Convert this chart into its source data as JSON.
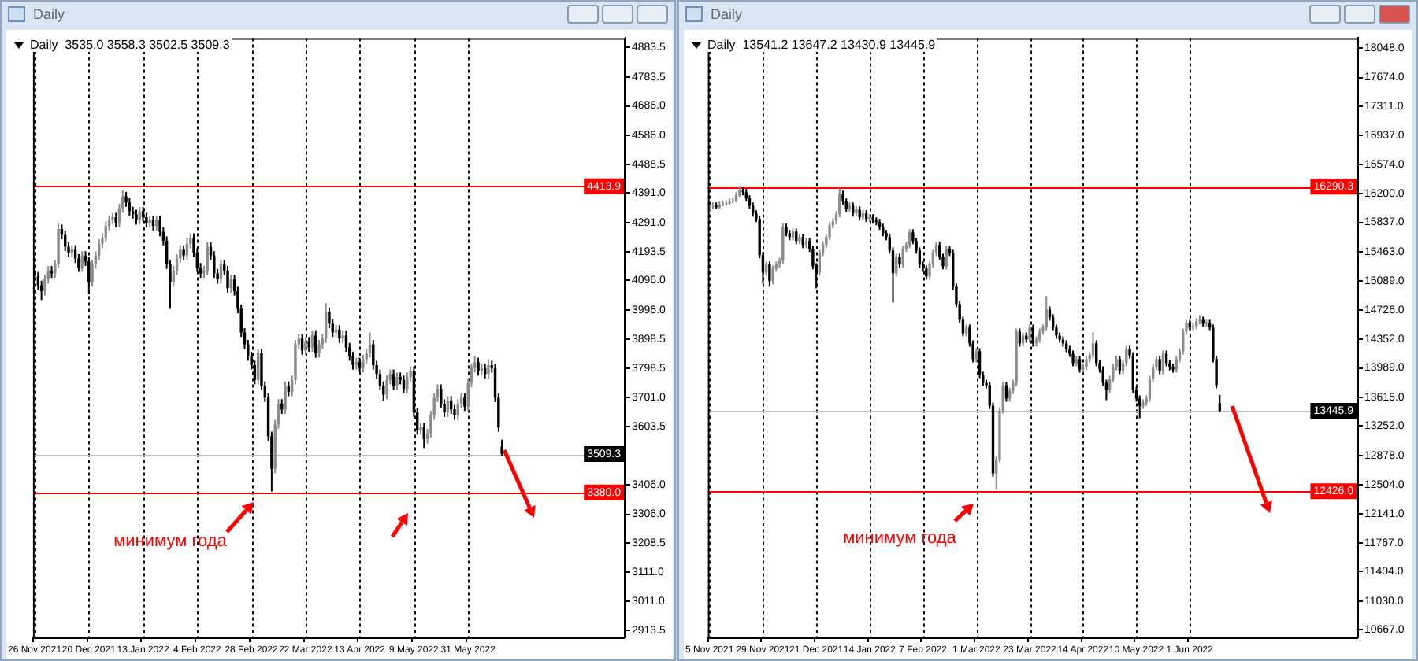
{
  "chart_data": [
    {
      "type": "candlestick",
      "title": "Daily",
      "subtitle": "Daily  3535.0 3558.3 3502.5 3509.3",
      "categories": [
        "26 Nov 2021",
        null,
        null,
        null,
        null,
        null,
        null,
        null,
        null,
        null,
        null,
        null,
        null,
        null,
        null,
        null,
        "20 Dec 2021",
        null,
        null,
        null,
        null,
        null,
        null,
        null,
        null,
        null,
        null,
        null,
        null,
        null,
        null,
        null,
        "13 Jan 2022",
        null,
        null,
        null,
        null,
        null,
        null,
        null,
        null,
        null,
        null,
        null,
        null,
        null,
        null,
        null,
        "4 Feb 2022",
        null,
        null,
        null,
        null,
        null,
        null,
        null,
        null,
        null,
        null,
        null,
        null,
        null,
        null,
        null,
        "28 Feb 2022",
        null,
        null,
        null,
        null,
        null,
        null,
        null,
        null,
        null,
        null,
        null,
        null,
        null,
        null,
        null,
        "22 Mar 2022",
        null,
        null,
        null,
        null,
        null,
        null,
        null,
        null,
        null,
        null,
        null,
        null,
        null,
        null,
        null,
        "13 Apr 2022",
        null,
        null,
        null,
        null,
        null,
        null,
        null,
        null,
        null,
        null,
        null,
        null,
        null,
        null,
        null,
        "9 May 2022",
        null,
        null,
        null,
        null,
        null,
        null,
        null,
        null,
        null,
        null,
        null,
        null,
        null,
        null,
        null,
        "31 May 2022",
        null,
        null,
        null,
        null,
        null,
        null,
        null,
        null,
        null,
        null,
        null,
        null,
        null,
        null,
        null,
        null,
        null,
        null,
        null,
        null,
        null,
        null,
        null,
        null,
        null,
        null,
        null,
        null,
        null,
        null,
        null,
        null,
        null,
        null,
        null,
        null,
        null,
        null,
        null,
        null,
        null,
        null,
        null,
        null,
        null,
        null
      ],
      "ohlc": [
        [
          4130,
          4145,
          4095,
          4110
        ],
        [
          4110,
          4125,
          4065,
          4080
        ],
        [
          4080,
          4095,
          4030,
          4060
        ],
        [
          4060,
          4115,
          4045,
          4100
        ],
        [
          4100,
          4145,
          4085,
          4130
        ],
        [
          4130,
          4145,
          4105,
          4120
        ],
        [
          4120,
          4165,
          4105,
          4150
        ],
        [
          4150,
          4290,
          4140,
          4270
        ],
        [
          4270,
          4285,
          4235,
          4250
        ],
        [
          4250,
          4265,
          4195,
          4210
        ],
        [
          4210,
          4225,
          4175,
          4190
        ],
        [
          4190,
          4215,
          4175,
          4200
        ],
        [
          4200,
          4215,
          4155,
          4170
        ],
        [
          4170,
          4185,
          4125,
          4140
        ],
        [
          4140,
          4195,
          4125,
          4180
        ],
        [
          4180,
          4195,
          4145,
          4160
        ],
        [
          4160,
          4175,
          4050,
          4090
        ],
        [
          4090,
          4165,
          4075,
          4150
        ],
        [
          4150,
          4195,
          4135,
          4180
        ],
        [
          4180,
          4235,
          4165,
          4220
        ],
        [
          4220,
          4255,
          4205,
          4240
        ],
        [
          4240,
          4295,
          4225,
          4280
        ],
        [
          4280,
          4315,
          4265,
          4300
        ],
        [
          4300,
          4325,
          4285,
          4310
        ],
        [
          4310,
          4325,
          4275,
          4290
        ],
        [
          4290,
          4355,
          4275,
          4340
        ],
        [
          4340,
          4400,
          4325,
          4380
        ],
        [
          4380,
          4395,
          4345,
          4360
        ],
        [
          4360,
          4375,
          4315,
          4330
        ],
        [
          4330,
          4345,
          4305,
          4320
        ],
        [
          4320,
          4335,
          4285,
          4300
        ],
        [
          4300,
          4345,
          4285,
          4330
        ],
        [
          4330,
          4345,
          4295,
          4310
        ],
        [
          4310,
          4325,
          4275,
          4290
        ],
        [
          4290,
          4315,
          4275,
          4300
        ],
        [
          4300,
          4315,
          4265,
          4280
        ],
        [
          4280,
          4315,
          4265,
          4300
        ],
        [
          4300,
          4315,
          4245,
          4260
        ],
        [
          4260,
          4275,
          4215,
          4230
        ],
        [
          4230,
          4245,
          4135,
          4150
        ],
        [
          4150,
          4165,
          4000,
          4090
        ],
        [
          4090,
          4145,
          4075,
          4130
        ],
        [
          4130,
          4185,
          4115,
          4170
        ],
        [
          4170,
          4215,
          4155,
          4200
        ],
        [
          4200,
          4215,
          4165,
          4180
        ],
        [
          4180,
          4240,
          4165,
          4220
        ],
        [
          4220,
          4255,
          4205,
          4240
        ],
        [
          4240,
          4255,
          4175,
          4190
        ],
        [
          4190,
          4205,
          4125,
          4140
        ],
        [
          4140,
          4155,
          4105,
          4120
        ],
        [
          4120,
          4145,
          4105,
          4130
        ],
        [
          4130,
          4225,
          4115,
          4210
        ],
        [
          4210,
          4225,
          4165,
          4180
        ],
        [
          4180,
          4195,
          4105,
          4120
        ],
        [
          4120,
          4135,
          4085,
          4100
        ],
        [
          4100,
          4165,
          4085,
          4150
        ],
        [
          4150,
          4165,
          4115,
          4130
        ],
        [
          4130,
          4145,
          4055,
          4070
        ],
        [
          4070,
          4115,
          4055,
          4100
        ],
        [
          4100,
          4115,
          4045,
          4060
        ],
        [
          4060,
          4075,
          3985,
          4000
        ],
        [
          4000,
          4015,
          3905,
          3920
        ],
        [
          3920,
          3935,
          3865,
          3880
        ],
        [
          3880,
          3895,
          3825,
          3840
        ],
        [
          3840,
          3855,
          3795,
          3810
        ],
        [
          3810,
          3825,
          3745,
          3760
        ],
        [
          3760,
          3865,
          3745,
          3850
        ],
        [
          3850,
          3865,
          3725,
          3740
        ],
        [
          3740,
          3755,
          3685,
          3700
        ],
        [
          3700,
          3715,
          3555,
          3570
        ],
        [
          3570,
          3585,
          3383,
          3460
        ],
        [
          3460,
          3625,
          3445,
          3610
        ],
        [
          3610,
          3695,
          3595,
          3680
        ],
        [
          3680,
          3695,
          3645,
          3660
        ],
        [
          3660,
          3755,
          3645,
          3740
        ],
        [
          3740,
          3755,
          3705,
          3720
        ],
        [
          3720,
          3775,
          3705,
          3760
        ],
        [
          3760,
          3895,
          3745,
          3880
        ],
        [
          3880,
          3915,
          3865,
          3900
        ],
        [
          3900,
          3915,
          3845,
          3860
        ],
        [
          3860,
          3905,
          3845,
          3890
        ],
        [
          3890,
          3905,
          3855,
          3870
        ],
        [
          3870,
          3925,
          3855,
          3910
        ],
        [
          3910,
          3925,
          3835,
          3850
        ],
        [
          3850,
          3895,
          3835,
          3880
        ],
        [
          3880,
          3915,
          3865,
          3900
        ],
        [
          3900,
          4020,
          3885,
          3990
        ],
        [
          3990,
          4005,
          3935,
          3950
        ],
        [
          3950,
          3965,
          3905,
          3920
        ],
        [
          3920,
          3945,
          3905,
          3930
        ],
        [
          3930,
          3945,
          3885,
          3900
        ],
        [
          3900,
          3925,
          3885,
          3910
        ],
        [
          3910,
          3925,
          3855,
          3870
        ],
        [
          3870,
          3885,
          3825,
          3840
        ],
        [
          3840,
          3855,
          3795,
          3810
        ],
        [
          3810,
          3835,
          3795,
          3820
        ],
        [
          3820,
          3835,
          3785,
          3800
        ],
        [
          3800,
          3845,
          3785,
          3830
        ],
        [
          3830,
          3865,
          3815,
          3850
        ],
        [
          3850,
          3920,
          3835,
          3880
        ],
        [
          3880,
          3895,
          3795,
          3810
        ],
        [
          3810,
          3825,
          3765,
          3780
        ],
        [
          3780,
          3795,
          3725,
          3740
        ],
        [
          3740,
          3755,
          3690,
          3710
        ],
        [
          3710,
          3775,
          3695,
          3760
        ],
        [
          3760,
          3795,
          3745,
          3780
        ],
        [
          3780,
          3795,
          3725,
          3740
        ],
        [
          3740,
          3785,
          3725,
          3770
        ],
        [
          3770,
          3785,
          3745,
          3760
        ],
        [
          3760,
          3775,
          3715,
          3730
        ],
        [
          3730,
          3785,
          3715,
          3770
        ],
        [
          3770,
          3805,
          3755,
          3790
        ],
        [
          3790,
          3805,
          3635,
          3650
        ],
        [
          3650,
          3665,
          3575,
          3590
        ],
        [
          3590,
          3615,
          3575,
          3600
        ],
        [
          3600,
          3615,
          3530,
          3560
        ],
        [
          3560,
          3595,
          3545,
          3580
        ],
        [
          3580,
          3655,
          3565,
          3640
        ],
        [
          3640,
          3715,
          3625,
          3700
        ],
        [
          3700,
          3745,
          3685,
          3730
        ],
        [
          3730,
          3745,
          3665,
          3680
        ],
        [
          3680,
          3695,
          3635,
          3650
        ],
        [
          3650,
          3705,
          3635,
          3690
        ],
        [
          3690,
          3705,
          3645,
          3660
        ],
        [
          3660,
          3675,
          3625,
          3640
        ],
        [
          3640,
          3695,
          3625,
          3680
        ],
        [
          3680,
          3715,
          3665,
          3700
        ],
        [
          3700,
          3715,
          3655,
          3670
        ],
        [
          3670,
          3765,
          3655,
          3750
        ],
        [
          3750,
          3815,
          3735,
          3800
        ],
        [
          3800,
          3840,
          3785,
          3820
        ],
        [
          3820,
          3835,
          3775,
          3790
        ],
        [
          3790,
          3815,
          3775,
          3800
        ],
        [
          3800,
          3815,
          3765,
          3780
        ],
        [
          3780,
          3830,
          3765,
          3810
        ],
        [
          3810,
          3825,
          3785,
          3800
        ],
        [
          3800,
          3815,
          3685,
          3700
        ],
        [
          3700,
          3715,
          3585,
          3600
        ],
        [
          3535.0,
          3558.3,
          3502.5,
          3509.3
        ],
        null,
        null,
        null,
        null,
        null,
        null,
        null,
        null,
        null,
        null,
        null,
        null,
        null,
        null,
        null,
        null,
        null,
        null,
        null,
        null,
        null,
        null,
        null,
        null,
        null,
        null,
        null,
        null,
        null,
        null,
        null,
        null,
        null,
        null,
        null,
        null
      ],
      "ylim": [
        2890,
        4915
      ],
      "yticks": [
        4883.5,
        4783.5,
        {
          "value": 4686.0,
          "label": "4686.0"
        },
        {
          "value": 4586.0,
          "label": "4586.0"
        },
        4488.5,
        {
          "value": 4391.0,
          "label": "4391.0"
        },
        {
          "value": 4291.0,
          "label": "4291.0"
        },
        4193.5,
        {
          "value": 4096.0,
          "label": "4096.0"
        },
        {
          "value": 3996.0,
          "label": "3996.0"
        },
        3898.5,
        3798.5,
        {
          "value": 3701.0,
          "label": "3701.0"
        },
        3603.5,
        {
          "value": 3406.0,
          "label": "3406.0"
        },
        {
          "value": 3306.0,
          "label": "3306.0"
        },
        3208.5,
        {
          "value": 3111.0,
          "label": "3111.0"
        },
        {
          "value": 3011.0,
          "label": "3011.0"
        },
        2913.5
      ],
      "grid": "x",
      "ref_lines": [
        {
          "axis": "y",
          "value": 4413.9,
          "label": "4413.9",
          "color": "#ff0000"
        },
        {
          "axis": "y",
          "value": 3380.0,
          "label": "3380.0",
          "color": "#ff0000"
        },
        {
          "axis": "y",
          "value": 3509.3,
          "label": "3509.3",
          "color": "#c0c0c0"
        }
      ],
      "annotations": [
        "минимум года"
      ]
    },
    {
      "type": "candlestick",
      "title": "Daily",
      "subtitle": "Daily  13541.2 13647.2 13430.9 13445.9",
      "categories": [
        "5 Nov 2021",
        null,
        null,
        null,
        null,
        null,
        null,
        null,
        null,
        null,
        null,
        null,
        null,
        null,
        null,
        null,
        "29 Nov 2021",
        null,
        null,
        null,
        null,
        null,
        null,
        null,
        null,
        null,
        null,
        null,
        null,
        null,
        null,
        null,
        "21 Dec 2021",
        null,
        null,
        null,
        null,
        null,
        null,
        null,
        null,
        null,
        null,
        null,
        null,
        null,
        null,
        null,
        "14 Jan 2022",
        null,
        null,
        null,
        null,
        null,
        null,
        null,
        null,
        null,
        null,
        null,
        null,
        null,
        null,
        null,
        "7 Feb 2022",
        null,
        null,
        null,
        null,
        null,
        null,
        null,
        null,
        null,
        null,
        null,
        null,
        null,
        null,
        null,
        "1 Mar 2022",
        null,
        null,
        null,
        null,
        null,
        null,
        null,
        null,
        null,
        null,
        null,
        null,
        null,
        null,
        null,
        "23 Mar 2022",
        null,
        null,
        null,
        null,
        null,
        null,
        null,
        null,
        null,
        null,
        null,
        null,
        null,
        null,
        null,
        "14 Apr 2022",
        null,
        null,
        null,
        null,
        null,
        null,
        null,
        null,
        null,
        null,
        null,
        null,
        null,
        null,
        null,
        "10 May 2022",
        null,
        null,
        null,
        null,
        null,
        null,
        null,
        null,
        null,
        null,
        null,
        null,
        null,
        null,
        null,
        "1 Jun 2022",
        null,
        null,
        null,
        null,
        null,
        null,
        null,
        null,
        null,
        null,
        null,
        null,
        null,
        null,
        null,
        null,
        null,
        null,
        null,
        null,
        null,
        null,
        null,
        null,
        null,
        null,
        null,
        null,
        null,
        null,
        null,
        null,
        null,
        null,
        null,
        null,
        null,
        null,
        null,
        null,
        null,
        null,
        null,
        null,
        null,
        null,
        null,
        null,
        null,
        null
      ],
      "ohlc": [
        [
          16000,
          16060,
          15980,
          16040
        ],
        [
          16040,
          16090,
          16010,
          16050
        ],
        [
          16050,
          16090,
          16010,
          16030
        ],
        [
          16030,
          16100,
          16010,
          16060
        ],
        [
          16060,
          16110,
          16040,
          16070
        ],
        [
          16070,
          16120,
          16050,
          16080
        ],
        [
          16080,
          16140,
          16060,
          16100
        ],
        [
          16100,
          16150,
          16080,
          16110
        ],
        [
          16110,
          16220,
          16090,
          16180
        ],
        [
          16180,
          16290,
          16160,
          16240
        ],
        [
          16240,
          16280,
          16180,
          16220
        ],
        [
          16220,
          16260,
          16100,
          16140
        ],
        [
          16140,
          16180,
          16010,
          16050
        ],
        [
          16050,
          16090,
          15910,
          15950
        ],
        [
          15950,
          15990,
          15840,
          15880
        ],
        [
          15880,
          15920,
          15380,
          15420
        ],
        [
          15420,
          15460,
          15060,
          15200
        ],
        [
          15200,
          15340,
          15160,
          15300
        ],
        [
          15300,
          15340,
          15020,
          15090
        ],
        [
          15090,
          15290,
          15050,
          15250
        ],
        [
          15250,
          15340,
          15210,
          15300
        ],
        [
          15300,
          15390,
          15260,
          15350
        ],
        [
          15350,
          15820,
          15310,
          15780
        ],
        [
          15780,
          15820,
          15660,
          15700
        ],
        [
          15700,
          15740,
          15610,
          15650
        ],
        [
          15650,
          15760,
          15610,
          15720
        ],
        [
          15720,
          15760,
          15560,
          15600
        ],
        [
          15600,
          15690,
          15560,
          15650
        ],
        [
          15650,
          15690,
          15510,
          15550
        ],
        [
          15550,
          15640,
          15510,
          15600
        ],
        [
          15600,
          15640,
          15460,
          15500
        ],
        [
          15500,
          15540,
          15240,
          15280
        ],
        [
          15280,
          15320,
          15000,
          15200
        ],
        [
          15200,
          15490,
          15160,
          15450
        ],
        [
          15450,
          15590,
          15410,
          15550
        ],
        [
          15550,
          15690,
          15510,
          15650
        ],
        [
          15650,
          15840,
          15610,
          15800
        ],
        [
          15800,
          15890,
          15760,
          15850
        ],
        [
          15850,
          15980,
          15810,
          15940
        ],
        [
          15940,
          16270,
          15900,
          16200
        ],
        [
          16200,
          16240,
          16060,
          16100
        ],
        [
          16100,
          16140,
          15970,
          16010
        ],
        [
          16010,
          16090,
          15970,
          16050
        ],
        [
          16050,
          16090,
          15910,
          15950
        ],
        [
          15950,
          16040,
          15910,
          16000
        ],
        [
          16000,
          16040,
          15860,
          15900
        ],
        [
          15900,
          15990,
          15860,
          15950
        ],
        [
          15950,
          15990,
          15840,
          15880
        ],
        [
          15880,
          15940,
          15840,
          15900
        ],
        [
          15900,
          15940,
          15820,
          15860
        ],
        [
          15860,
          15900,
          15800,
          15840
        ],
        [
          15840,
          15880,
          15740,
          15780
        ],
        [
          15780,
          15820,
          15660,
          15700
        ],
        [
          15700,
          15740,
          15610,
          15650
        ],
        [
          15650,
          15690,
          15440,
          15480
        ],
        [
          15480,
          15520,
          14820,
          15190
        ],
        [
          15190,
          15440,
          15150,
          15400
        ],
        [
          15400,
          15440,
          15260,
          15300
        ],
        [
          15300,
          15540,
          15260,
          15500
        ],
        [
          15500,
          15590,
          15460,
          15550
        ],
        [
          15550,
          15750,
          15510,
          15710
        ],
        [
          15710,
          15750,
          15560,
          15600
        ],
        [
          15600,
          15640,
          15440,
          15480
        ],
        [
          15480,
          15520,
          15260,
          15300
        ],
        [
          15300,
          15340,
          15210,
          15250
        ],
        [
          15250,
          15290,
          15110,
          15150
        ],
        [
          15150,
          15340,
          15110,
          15300
        ],
        [
          15300,
          15490,
          15260,
          15450
        ],
        [
          15450,
          15590,
          15410,
          15550
        ],
        [
          15550,
          15590,
          15360,
          15400
        ],
        [
          15400,
          15440,
          15240,
          15280
        ],
        [
          15280,
          15540,
          15240,
          15500
        ],
        [
          15500,
          15540,
          15410,
          15450
        ],
        [
          15450,
          15490,
          14980,
          15020
        ],
        [
          15020,
          15060,
          14760,
          14800
        ],
        [
          14800,
          14840,
          14560,
          14600
        ],
        [
          14600,
          14640,
          14390,
          14430
        ],
        [
          14430,
          14540,
          14390,
          14500
        ],
        [
          14500,
          14540,
          14260,
          14300
        ],
        [
          14300,
          14340,
          14060,
          14100
        ],
        [
          14100,
          14240,
          14060,
          14200
        ],
        [
          14200,
          14240,
          13860,
          13900
        ],
        [
          13900,
          13940,
          13760,
          13800
        ],
        [
          13800,
          13840,
          13730,
          13770
        ],
        [
          13770,
          13810,
          13470,
          13510
        ],
        [
          13510,
          13550,
          12610,
          12650
        ],
        [
          12650,
          12870,
          12445,
          12830
        ],
        [
          12830,
          13490,
          12790,
          13450
        ],
        [
          13450,
          13810,
          13410,
          13770
        ],
        [
          13770,
          13810,
          13560,
          13600
        ],
        [
          13600,
          13740,
          13560,
          13700
        ],
        [
          13700,
          13840,
          13660,
          13800
        ],
        [
          13800,
          14490,
          13760,
          14450
        ],
        [
          14450,
          14490,
          14260,
          14300
        ],
        [
          14300,
          14440,
          14260,
          14400
        ],
        [
          14400,
          14440,
          14310,
          14350
        ],
        [
          14350,
          14540,
          14310,
          14500
        ],
        [
          14500,
          14540,
          14260,
          14300
        ],
        [
          14300,
          14390,
          14260,
          14350
        ],
        [
          14350,
          14490,
          14310,
          14450
        ],
        [
          14450,
          14540,
          14410,
          14500
        ],
        [
          14500,
          14900,
          14460,
          14730
        ],
        [
          14730,
          14770,
          14590,
          14630
        ],
        [
          14630,
          14670,
          14460,
          14500
        ],
        [
          14500,
          14540,
          14360,
          14400
        ],
        [
          14400,
          14440,
          14310,
          14350
        ],
        [
          14350,
          14390,
          14260,
          14300
        ],
        [
          14300,
          14340,
          14190,
          14230
        ],
        [
          14230,
          14270,
          14130,
          14170
        ],
        [
          14170,
          14210,
          14010,
          14050
        ],
        [
          14050,
          14140,
          14010,
          14100
        ],
        [
          14100,
          14140,
          13930,
          13970
        ],
        [
          13970,
          14040,
          13930,
          14000
        ],
        [
          14000,
          14140,
          13960,
          14100
        ],
        [
          14100,
          14190,
          14060,
          14150
        ],
        [
          14150,
          14440,
          14110,
          14300
        ],
        [
          14300,
          14340,
          14010,
          14050
        ],
        [
          14050,
          14090,
          13930,
          13970
        ],
        [
          13970,
          14010,
          13760,
          13800
        ],
        [
          13800,
          13840,
          13580,
          13710
        ],
        [
          13710,
          13890,
          13670,
          13850
        ],
        [
          13850,
          14040,
          13810,
          14000
        ],
        [
          14000,
          14140,
          13960,
          14100
        ],
        [
          14100,
          14140,
          13910,
          13950
        ],
        [
          13950,
          14090,
          13910,
          14050
        ],
        [
          14050,
          14270,
          14010,
          14230
        ],
        [
          14230,
          14270,
          14110,
          14150
        ],
        [
          14150,
          14190,
          13670,
          13710
        ],
        [
          13710,
          13750,
          13560,
          13600
        ],
        [
          13600,
          13640,
          13350,
          13510
        ],
        [
          13510,
          13590,
          13470,
          13550
        ],
        [
          13550,
          13640,
          13510,
          13600
        ],
        [
          13600,
          13890,
          13560,
          13850
        ],
        [
          13850,
          14040,
          13810,
          14000
        ],
        [
          14000,
          14140,
          13960,
          14100
        ],
        [
          14100,
          14140,
          13910,
          13950
        ],
        [
          13950,
          14210,
          13910,
          14170
        ],
        [
          14170,
          14210,
          14010,
          14050
        ],
        [
          14050,
          14090,
          13960,
          14000
        ],
        [
          14000,
          14040,
          13930,
          13970
        ],
        [
          13970,
          14140,
          13930,
          14100
        ],
        [
          14100,
          14240,
          14060,
          14200
        ],
        [
          14200,
          14490,
          14160,
          14450
        ],
        [
          14450,
          14600,
          14410,
          14560
        ],
        [
          14560,
          14600,
          14460,
          14500
        ],
        [
          14500,
          14560,
          14460,
          14520
        ],
        [
          14520,
          14620,
          14480,
          14580
        ],
        [
          14580,
          14660,
          14540,
          14600
        ],
        [
          14600,
          14640,
          14510,
          14550
        ],
        [
          14550,
          14600,
          14510,
          14560
        ],
        [
          14560,
          14600,
          14460,
          14500
        ],
        [
          14500,
          14540,
          14060,
          14100
        ],
        [
          14100,
          14140,
          13730,
          13770
        ],
        [
          13541.2,
          13647.2,
          13430.9,
          13445.9
        ],
        null,
        null,
        null,
        null,
        null,
        null,
        null,
        null,
        null,
        null,
        null,
        null,
        null,
        null,
        null,
        null,
        null,
        null,
        null,
        null,
        null,
        null,
        null,
        null,
        null,
        null,
        null,
        null,
        null,
        null,
        null,
        null,
        null,
        null,
        null,
        null,
        null,
        null,
        null,
        null,
        null
      ],
      "ylim": [
        10570,
        18175
      ],
      "yticks": [
        {
          "value": 18048.0,
          "label": "18048.0"
        },
        {
          "value": 17674.0,
          "label": "17674.0"
        },
        {
          "value": 17311.0,
          "label": "17311.0"
        },
        {
          "value": 16937.0,
          "label": "16937.0"
        },
        {
          "value": 16574.0,
          "label": "16574.0"
        },
        {
          "value": 16200.0,
          "label": "16200.0"
        },
        {
          "value": 15837.0,
          "label": "15837.0"
        },
        {
          "value": 15463.0,
          "label": "15463.0"
        },
        {
          "value": 15089.0,
          "label": "15089.0"
        },
        {
          "value": 14726.0,
          "label": "14726.0"
        },
        {
          "value": 14352.0,
          "label": "14352.0"
        },
        {
          "value": 13989.0,
          "label": "13989.0"
        },
        {
          "value": 13615.0,
          "label": "13615.0"
        },
        {
          "value": 13252.0,
          "label": "13252.0"
        },
        {
          "value": 12878.0,
          "label": "12878.0"
        },
        {
          "value": 12504.0,
          "label": "12504.0"
        },
        {
          "value": 12141.0,
          "label": "12141.0"
        },
        {
          "value": 11767.0,
          "label": "11767.0"
        },
        {
          "value": 11404.0,
          "label": "11404.0"
        },
        {
          "value": 11030.0,
          "label": "11030.0"
        },
        {
          "value": 10667.0,
          "label": "10667.0"
        }
      ],
      "grid": "x",
      "ref_lines": [
        {
          "axis": "y",
          "value": 16290.3,
          "label": "16290.3",
          "color": "#ff0000"
        },
        {
          "axis": "y",
          "value": 12426.0,
          "label": "12426.0",
          "color": "#ff0000"
        },
        {
          "axis": "y",
          "value": 13445.9,
          "label": "13445.9",
          "color": "#c0c0c0"
        }
      ],
      "annotations": [
        "минимум года"
      ]
    }
  ]
}
